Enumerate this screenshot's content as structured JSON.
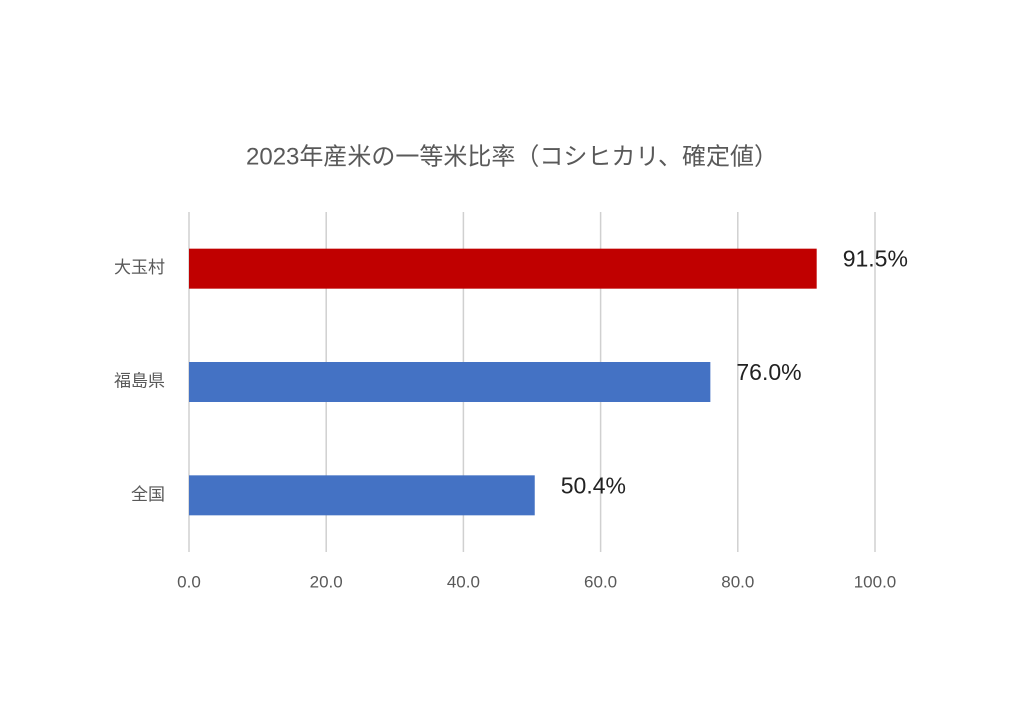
{
  "chart_data": {
    "type": "bar",
    "orientation": "horizontal",
    "title": "2023年産米の一等米比率（コシヒカリ、確定値）",
    "categories": [
      "大玉村",
      "福島県",
      "全国"
    ],
    "values": [
      91.5,
      76.0,
      50.4
    ],
    "value_labels": [
      "91.5%",
      "76.0%",
      "50.4%"
    ],
    "colors": [
      "#c00000",
      "#4472c4",
      "#4472c4"
    ],
    "xlim": [
      0,
      100
    ],
    "xticks": [
      {
        "value": 0,
        "label": "0.0"
      },
      {
        "value": 20,
        "label": "20.0"
      },
      {
        "value": 40,
        "label": "40.0"
      },
      {
        "value": 60,
        "label": "60.0"
      },
      {
        "value": 80,
        "label": "80.0"
      },
      {
        "value": 100,
        "label": "100.0"
      }
    ],
    "grid": true
  }
}
